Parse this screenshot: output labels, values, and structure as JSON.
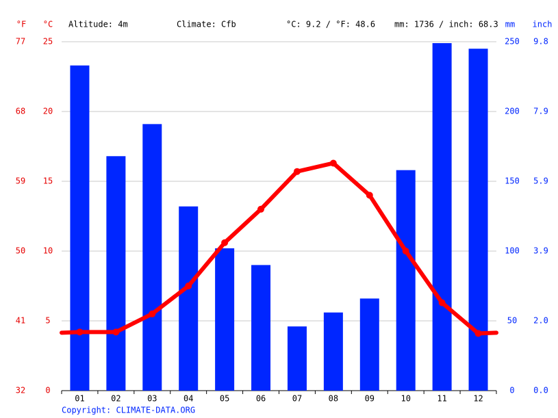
{
  "chart_data": {
    "type": "bar",
    "annotations": [
      "Altitude: 4m",
      "Climate: Cfb",
      "°C: 9.2 / °F: 48.6",
      "mm: 1736 / inch: 68.3"
    ],
    "y_label_f": "°F",
    "y_label": "°C",
    "y2_label": "mm",
    "y2_label_inch": "inch",
    "source": "Copyright: CLIMATE-DATA.ORG",
    "categories": [
      "01",
      "02",
      "03",
      "04",
      "05",
      "06",
      "07",
      "08",
      "09",
      "10",
      "11",
      "12"
    ],
    "series": [
      {
        "type": "bar",
        "axis": "y2",
        "color": "#0026ff",
        "values": [
          233,
          168,
          191,
          132,
          102,
          90,
          46,
          56,
          66,
          158,
          249,
          245
        ]
      },
      {
        "type": "line",
        "color": "#ff0000",
        "values": [
          4.2,
          4.2,
          5.5,
          7.5,
          10.6,
          13.0,
          15.7,
          16.3,
          14.0,
          10.0,
          6.3,
          4.1
        ]
      }
    ],
    "ylim": [
      0,
      25
    ],
    "yticks": [
      0,
      5,
      10,
      15,
      20,
      25
    ],
    "yticks_f": [
      32,
      41,
      50,
      59,
      68,
      77
    ],
    "y2lim": [
      0,
      250
    ],
    "y2ticks": [
      0,
      50,
      100,
      150,
      200,
      250
    ],
    "y2ticks_inch": [
      {
        "value": 0,
        "label": "0.0"
      },
      {
        "value": 2,
        "label": "2.0"
      },
      3.9,
      5.9,
      7.9,
      9.8
    ],
    "grid": true
  }
}
